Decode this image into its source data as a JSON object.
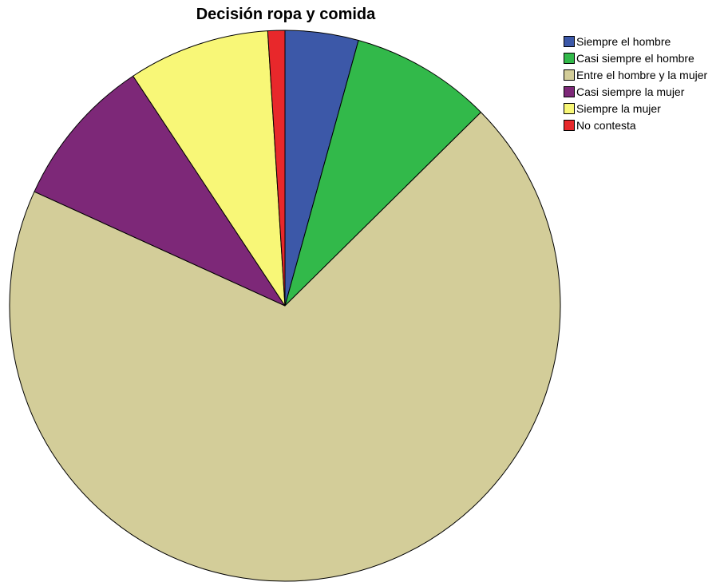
{
  "chart_data": {
    "type": "pie",
    "title": "Decisión ropa y comida",
    "legend_position": "top-right",
    "slices": [
      {
        "label": "Siempre el hombre",
        "value": 4.3,
        "color": "#3c58a8"
      },
      {
        "label": "Casi siempre el hombre",
        "value": 8.3,
        "color": "#32b94a"
      },
      {
        "label": "Entre el hombre y la mujer",
        "value": 69.2,
        "color": "#d3cd99"
      },
      {
        "label": "Casi siempre la mujer",
        "value": 8.9,
        "color": "#7d2878"
      },
      {
        "label": "Siempre la mujer",
        "value": 8.3,
        "color": "#f8f777"
      },
      {
        "label": "No contesta",
        "value": 1.0,
        "color": "#e8282b"
      }
    ]
  }
}
